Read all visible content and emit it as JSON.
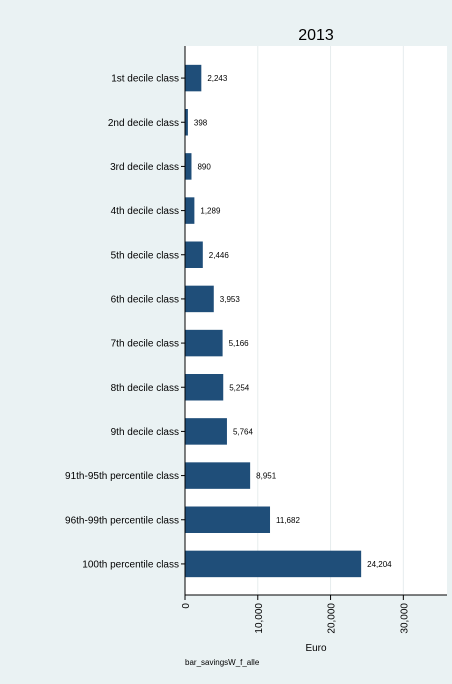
{
  "chart_data": {
    "type": "bar",
    "orientation": "horizontal",
    "title": "2013",
    "categories": [
      "1st decile class",
      "2nd decile class",
      "3rd decile class",
      "4th decile class",
      "5th decile class",
      "6th decile class",
      "7th decile class",
      "8th decile class",
      "9th decile class",
      "91th-95th percentile class",
      "96th-99th percentile class",
      "100th percentile class"
    ],
    "values": [
      2243,
      398,
      890,
      1289,
      2446,
      3953,
      5166,
      5254,
      5764,
      8951,
      11682,
      24204
    ],
    "value_labels": [
      "2,243",
      "398",
      "890",
      "1,289",
      "2,446",
      "3,953",
      "5,166",
      "5,254",
      "5,764",
      "8,951",
      "11,682",
      "24,204"
    ],
    "xlabel": "Euro",
    "ylabel": "",
    "xlim": [
      0,
      36000
    ],
    "xticks": [
      0,
      10000,
      20000,
      30000
    ],
    "xtick_labels": [
      "0",
      "10,000",
      "20,000",
      "30,000"
    ],
    "grid": true,
    "bar_color": "#1f4e79",
    "background_color": "#eaf2f3",
    "plot_color": "#ffffff",
    "note": "bar_savingsW_f_alle"
  }
}
